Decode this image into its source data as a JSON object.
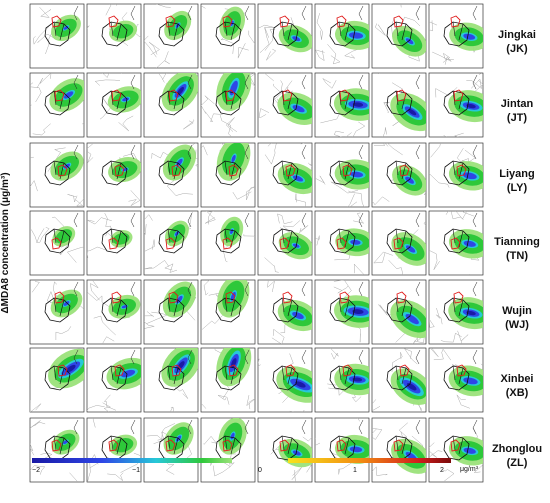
{
  "y_axis_label": "ΔMDA8 concentration (μg/m³)",
  "rows": [
    {
      "name": "Jingkai",
      "abbr": "(JK)"
    },
    {
      "name": "Jintan",
      "abbr": "(JT)"
    },
    {
      "name": "Liyang",
      "abbr": "(LY)"
    },
    {
      "name": "Tianning",
      "abbr": "(TN)"
    },
    {
      "name": "Wujin",
      "abbr": "(WJ)"
    },
    {
      "name": "Xinbei",
      "abbr": "(XB)"
    },
    {
      "name": "Zhonglou",
      "abbr": "(ZL)"
    }
  ],
  "columns": 8,
  "colorbar": {
    "ticks": [
      "−2",
      "−1",
      "0",
      "1",
      "2"
    ],
    "unit": "μg/m³",
    "colors": {
      "deep_blue": "#1a1aa6",
      "blue": "#2e46e6",
      "cyan": "#27c8d8",
      "green": "#2ec83a",
      "light_green": "#9be27a",
      "yellow": "#f7e21c",
      "orange": "#f28a12",
      "red": "#d11d1d",
      "dark_red": "#7a0a0a"
    }
  }
}
